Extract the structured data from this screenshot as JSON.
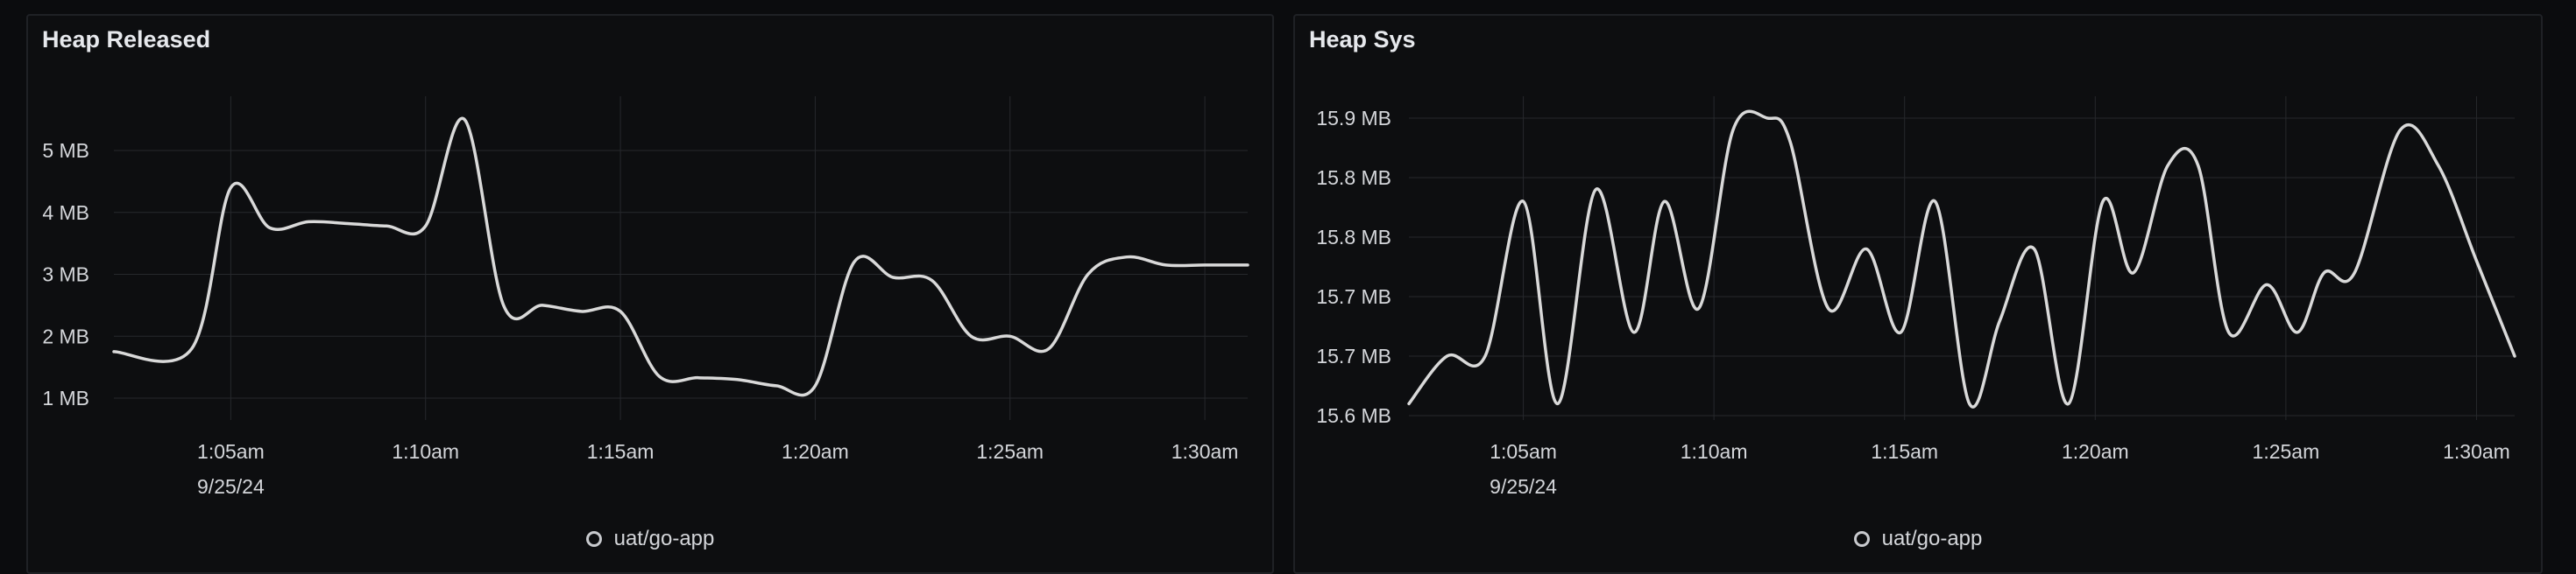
{
  "colors": {
    "line": "#d9d9d9",
    "grid": "#26282c",
    "axis_text": "#d4d6da",
    "background": "#0b0c0e"
  },
  "chart_data": [
    {
      "type": "line",
      "title": "Heap Released",
      "xlabel": "",
      "ylabel": "",
      "x_ticks": [
        "1:05am",
        "1:10am",
        "1:15am",
        "1:20am",
        "1:25am",
        "1:30am"
      ],
      "x_tick_minutes": [
        5,
        10,
        15,
        20,
        25,
        30
      ],
      "x_date_label": "9/25/24",
      "y_ticks": [
        "1 MB",
        "2 MB",
        "3 MB",
        "4 MB",
        "5 MB"
      ],
      "y_tick_values": [
        1,
        2,
        3,
        4,
        5
      ],
      "ylim": [
        0.8,
        5.5
      ],
      "xlim": [
        2.0,
        31.1
      ],
      "grid": true,
      "legend": "bottom-center",
      "series": [
        {
          "name": "uat/go-app",
          "x": [
            2.0,
            4.0,
            5.0,
            6.0,
            7.0,
            8.0,
            9.0,
            10.0,
            11.0,
            12.0,
            13.0,
            14.0,
            15.0,
            16.0,
            17.0,
            18.0,
            19.0,
            20.0,
            21.0,
            22.0,
            23.0,
            24.0,
            25.0,
            26.0,
            27.0,
            28.0,
            29.0,
            30.0,
            31.1
          ],
          "values": [
            1.75,
            1.8,
            4.4,
            3.75,
            3.85,
            3.82,
            3.78,
            3.78,
            5.5,
            2.5,
            2.5,
            2.4,
            2.4,
            1.35,
            1.33,
            1.3,
            1.2,
            1.2,
            3.2,
            2.95,
            2.9,
            2.0,
            2.0,
            1.8,
            3.0,
            3.28,
            3.15,
            3.15,
            3.15
          ]
        }
      ],
      "legend_items": [
        "uat/go-app"
      ]
    },
    {
      "type": "line",
      "title": "Heap Sys",
      "xlabel": "",
      "ylabel": "",
      "x_ticks": [
        "1:05am",
        "1:10am",
        "1:15am",
        "1:20am",
        "1:25am",
        "1:30am"
      ],
      "x_tick_minutes": [
        5,
        10,
        15,
        20,
        25,
        30
      ],
      "x_date_label": "9/25/24",
      "y_ticks": [
        "15.6 MB",
        "15.7 MB",
        "15.7 MB",
        "15.8 MB",
        "15.8 MB",
        "15.9 MB"
      ],
      "y_tick_values": [
        15.6,
        15.65,
        15.7,
        15.75,
        15.8,
        15.85
      ],
      "ylim": [
        15.6,
        15.86
      ],
      "xlim": [
        2.0,
        31.0
      ],
      "grid": true,
      "legend": "bottom-center",
      "series": [
        {
          "name": "uat/go-app",
          "x": [
            2.0,
            3.0,
            4.0,
            5.0,
            5.9,
            6.9,
            7.9,
            8.7,
            9.6,
            10.5,
            11.4,
            12.0,
            13.0,
            14.0,
            14.9,
            15.8,
            16.7,
            17.5,
            18.4,
            19.3,
            20.2,
            21.0,
            21.9,
            22.7,
            23.5,
            24.5,
            25.3,
            26.0,
            26.8,
            28.0,
            29.0,
            30.0,
            31.0
          ],
          "values": [
            15.61,
            15.65,
            15.65,
            15.78,
            15.61,
            15.79,
            15.67,
            15.78,
            15.69,
            15.84,
            15.85,
            15.83,
            15.69,
            15.74,
            15.67,
            15.78,
            15.61,
            15.68,
            15.74,
            15.61,
            15.78,
            15.72,
            15.81,
            15.81,
            15.67,
            15.71,
            15.67,
            15.72,
            15.72,
            15.84,
            15.81,
            15.73,
            15.65
          ]
        }
      ],
      "legend_items": [
        "uat/go-app"
      ]
    }
  ]
}
